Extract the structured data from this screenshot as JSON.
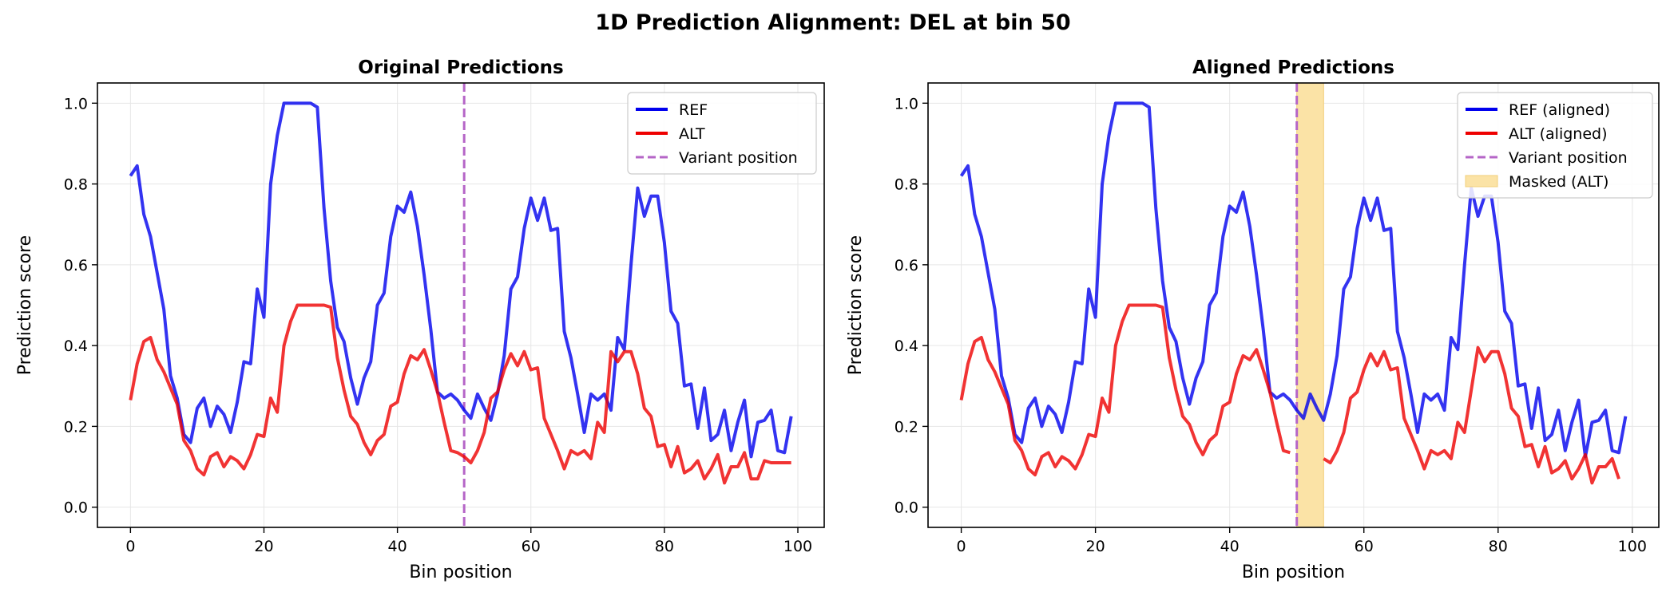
{
  "figure": {
    "suptitle": "1D Prediction Alignment: DEL at bin 50"
  },
  "colors": {
    "ref": "#0000ee",
    "alt": "#ee0000",
    "variant": "#b565c7",
    "mask": "#fbe3a6",
    "mask_edge": "#f2cf7a",
    "grid": "#e6e6e6"
  },
  "chart_data": [
    {
      "type": "line",
      "title": "Original Predictions",
      "xlabel": "Bin position",
      "ylabel": "Prediction score",
      "xlim": [
        -4.95,
        103.95
      ],
      "ylim": [
        -0.05,
        1.05
      ],
      "xticks": [
        0,
        20,
        40,
        60,
        80,
        100
      ],
      "yticks": [
        0.0,
        0.2,
        0.4,
        0.6,
        0.8,
        1.0
      ],
      "grid": true,
      "legend_position": "top-right",
      "variant_position": 50,
      "series": [
        {
          "name": "REF",
          "color": "#0000ee",
          "style": "solid",
          "start": 0,
          "values": [
            0.82,
            0.845,
            0.725,
            0.67,
            0.58,
            0.49,
            0.325,
            0.27,
            0.18,
            0.16,
            0.245,
            0.27,
            0.2,
            0.25,
            0.23,
            0.185,
            0.26,
            0.36,
            0.355,
            0.54,
            0.47,
            0.8,
            0.92,
            1.0,
            1.0,
            1.0,
            1.0,
            1.0,
            0.99,
            0.74,
            0.56,
            0.445,
            0.41,
            0.32,
            0.255,
            0.32,
            0.36,
            0.5,
            0.53,
            0.67,
            0.745,
            0.73,
            0.78,
            0.695,
            0.575,
            0.44,
            0.285,
            0.27,
            0.28,
            0.265,
            0.24,
            0.22,
            0.28,
            0.245,
            0.215,
            0.28,
            0.375,
            0.54,
            0.57,
            0.69,
            0.765,
            0.71,
            0.765,
            0.685,
            0.69,
            0.435,
            0.37,
            0.28,
            0.185,
            0.28,
            0.265,
            0.28,
            0.24,
            0.42,
            0.39,
            0.6,
            0.79,
            0.72,
            0.77,
            0.77,
            0.655,
            0.485,
            0.455,
            0.3,
            0.305,
            0.195,
            0.295,
            0.165,
            0.18,
            0.24,
            0.14,
            0.21,
            0.265,
            0.125,
            0.21,
            0.215,
            0.24,
            0.14,
            0.135,
            0.225
          ]
        },
        {
          "name": "ALT",
          "color": "#ee0000",
          "style": "solid",
          "start": 0,
          "values": [
            0.265,
            0.355,
            0.41,
            0.42,
            0.365,
            0.335,
            0.295,
            0.255,
            0.165,
            0.14,
            0.095,
            0.08,
            0.125,
            0.135,
            0.1,
            0.125,
            0.115,
            0.095,
            0.13,
            0.18,
            0.175,
            0.27,
            0.235,
            0.4,
            0.46,
            0.5,
            0.5,
            0.5,
            0.5,
            0.5,
            0.495,
            0.37,
            0.29,
            0.225,
            0.205,
            0.16,
            0.13,
            0.165,
            0.18,
            0.25,
            0.26,
            0.33,
            0.375,
            0.365,
            0.39,
            0.34,
            0.285,
            0.21,
            0.14,
            0.135,
            0.125,
            0.11,
            0.14,
            0.185,
            0.27,
            0.285,
            0.34,
            0.38,
            0.35,
            0.385,
            0.34,
            0.345,
            0.22,
            0.18,
            0.14,
            0.095,
            0.14,
            0.13,
            0.14,
            0.12,
            0.21,
            0.185,
            0.385,
            0.36,
            0.385,
            0.385,
            0.33,
            0.245,
            0.225,
            0.15,
            0.155,
            0.1,
            0.15,
            0.085,
            0.095,
            0.115,
            0.07,
            0.095,
            0.13,
            0.06,
            0.1,
            0.1,
            0.135,
            0.07,
            0.07,
            0.115,
            0.11,
            0.11,
            0.11,
            0.11
          ]
        }
      ],
      "legend": [
        {
          "label": "REF",
          "kind": "line",
          "color": "#0000ee"
        },
        {
          "label": "ALT",
          "kind": "line",
          "color": "#ee0000"
        },
        {
          "label": "Variant position",
          "kind": "dashed",
          "color": "#b565c7"
        }
      ]
    },
    {
      "type": "line",
      "title": "Aligned Predictions",
      "xlabel": "Bin position",
      "ylabel": "Prediction score",
      "xlim": [
        -4.95,
        103.95
      ],
      "ylim": [
        -0.05,
        1.05
      ],
      "xticks": [
        0,
        20,
        40,
        60,
        80,
        100
      ],
      "yticks": [
        0.0,
        0.2,
        0.4,
        0.6,
        0.8,
        1.0
      ],
      "grid": true,
      "legend_position": "top-right",
      "variant_position": 50,
      "masked_range": [
        50,
        54
      ],
      "series": [
        {
          "name": "REF (aligned)",
          "color": "#0000ee",
          "style": "solid",
          "start": 0,
          "values": [
            0.82,
            0.845,
            0.725,
            0.67,
            0.58,
            0.49,
            0.325,
            0.27,
            0.18,
            0.16,
            0.245,
            0.27,
            0.2,
            0.25,
            0.23,
            0.185,
            0.26,
            0.36,
            0.355,
            0.54,
            0.47,
            0.8,
            0.92,
            1.0,
            1.0,
            1.0,
            1.0,
            1.0,
            0.99,
            0.74,
            0.56,
            0.445,
            0.41,
            0.32,
            0.255,
            0.32,
            0.36,
            0.5,
            0.53,
            0.67,
            0.745,
            0.73,
            0.78,
            0.695,
            0.575,
            0.44,
            0.285,
            0.27,
            0.28,
            0.265,
            0.24,
            0.22,
            0.28,
            0.245,
            0.215,
            0.28,
            0.375,
            0.54,
            0.57,
            0.69,
            0.765,
            0.71,
            0.765,
            0.685,
            0.69,
            0.435,
            0.37,
            0.28,
            0.185,
            0.28,
            0.265,
            0.28,
            0.24,
            0.42,
            0.39,
            0.6,
            0.79,
            0.72,
            0.77,
            0.77,
            0.655,
            0.485,
            0.455,
            0.3,
            0.305,
            0.195,
            0.295,
            0.165,
            0.18,
            0.24,
            0.14,
            0.21,
            0.265,
            0.125,
            0.21,
            0.215,
            0.24,
            0.14,
            0.135,
            0.225
          ]
        },
        {
          "name": "ALT (aligned)",
          "color": "#ee0000",
          "style": "solid",
          "start": 0,
          "segments": [
            {
              "start": 0,
              "values": [
                0.265,
                0.355,
                0.41,
                0.42,
                0.365,
                0.335,
                0.295,
                0.255,
                0.165,
                0.14,
                0.095,
                0.08,
                0.125,
                0.135,
                0.1,
                0.125,
                0.115,
                0.095,
                0.13,
                0.18,
                0.175,
                0.27,
                0.235,
                0.4,
                0.46,
                0.5,
                0.5,
                0.5,
                0.5,
                0.5,
                0.495,
                0.37,
                0.29,
                0.225,
                0.205,
                0.16,
                0.13,
                0.165,
                0.18,
                0.25,
                0.26,
                0.33,
                0.375,
                0.365,
                0.39,
                0.34,
                0.285,
                0.21,
                0.14,
                0.135
              ]
            },
            {
              "start": 54,
              "values": [
                0.12,
                0.11,
                0.14,
                0.185,
                0.27,
                0.285,
                0.34,
                0.38,
                0.35,
                0.385,
                0.34,
                0.345,
                0.22,
                0.18,
                0.14,
                0.095,
                0.14,
                0.13,
                0.14,
                0.12,
                0.21,
                0.185,
                0.29,
                0.395,
                0.36,
                0.385,
                0.385,
                0.33,
                0.245,
                0.225,
                0.15,
                0.155,
                0.1,
                0.15,
                0.085,
                0.095,
                0.115,
                0.07,
                0.095,
                0.13,
                0.06,
                0.1,
                0.1,
                0.12,
                0.07
              ]
            }
          ]
        }
      ],
      "legend": [
        {
          "label": "REF (aligned)",
          "kind": "line",
          "color": "#0000ee"
        },
        {
          "label": "ALT (aligned)",
          "kind": "line",
          "color": "#ee0000"
        },
        {
          "label": "Variant position",
          "kind": "dashed",
          "color": "#b565c7"
        },
        {
          "label": "Masked (ALT)",
          "kind": "patch",
          "color": "#fbe3a6"
        }
      ]
    }
  ]
}
